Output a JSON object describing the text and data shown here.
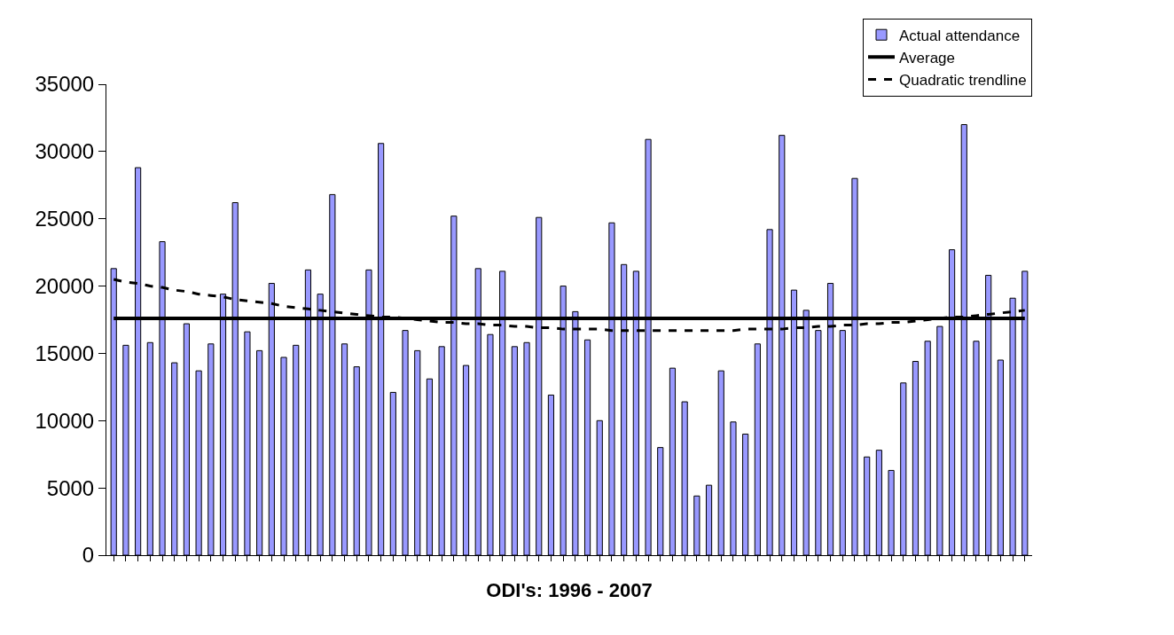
{
  "chart_data": {
    "type": "bar",
    "xlabel": "ODI's: 1996 - 2007",
    "categories": [
      null,
      null,
      null,
      null,
      null,
      null,
      null,
      null,
      null,
      null,
      null,
      null,
      null,
      null,
      null,
      null,
      null,
      null,
      null,
      null,
      null,
      null,
      null,
      null,
      null,
      null,
      null,
      null,
      null,
      null,
      null,
      null,
      null,
      null,
      null,
      null,
      null,
      null,
      null,
      null,
      null,
      null,
      null,
      null,
      null,
      null,
      null,
      null,
      null,
      null,
      null,
      null,
      null,
      null,
      null,
      null,
      null,
      null,
      null,
      null,
      null,
      null,
      null,
      null,
      null,
      null,
      null,
      null,
      null,
      null,
      null,
      null,
      null,
      null,
      null,
      null
    ],
    "series": [
      {
        "name": "Actual attendance",
        "color": "#9999ff",
        "values": [
          21300,
          15600,
          28800,
          15800,
          23300,
          14300,
          17200,
          13700,
          15700,
          19400,
          26200,
          16600,
          15200,
          20200,
          14700,
          15600,
          21200,
          19400,
          26800,
          15700,
          14000,
          21200,
          30600,
          12100,
          16700,
          15200,
          13100,
          15500,
          25200,
          14100,
          21300,
          16400,
          21100,
          15500,
          15800,
          25100,
          11900,
          20000,
          18100,
          16000,
          10000,
          24700,
          21600,
          21100,
          30900,
          8000,
          13900,
          11400,
          4400,
          5200,
          13700,
          9900,
          9000,
          15700,
          24200,
          31200,
          19700,
          18200,
          16700,
          20200,
          16700,
          28000,
          7300,
          7800,
          6300,
          12800,
          14400,
          15900,
          17000,
          22700,
          32000,
          15900,
          20800,
          14500,
          19100,
          21100
        ]
      },
      {
        "name": "Average",
        "type": "line",
        "color": "#000000",
        "line_style": "solid",
        "values": [
          17600,
          17600,
          17600,
          17600,
          17600,
          17600,
          17600,
          17600,
          17600,
          17600,
          17600,
          17600,
          17600,
          17600,
          17600,
          17600,
          17600,
          17600,
          17600,
          17600,
          17600,
          17600,
          17600,
          17600,
          17600,
          17600,
          17600,
          17600,
          17600,
          17600,
          17600,
          17600,
          17600,
          17600,
          17600,
          17600,
          17600,
          17600,
          17600,
          17600,
          17600,
          17600,
          17600,
          17600,
          17600,
          17600,
          17600,
          17600,
          17600,
          17600,
          17600,
          17600,
          17600,
          17600,
          17600,
          17600,
          17600,
          17600,
          17600,
          17600,
          17600,
          17600,
          17600,
          17600,
          17600,
          17600,
          17600,
          17600,
          17600,
          17600,
          17600,
          17600,
          17600,
          17600,
          17600,
          17600
        ]
      },
      {
        "name": "Quadratic trendline",
        "type": "line",
        "color": "#000000",
        "line_style": "dashed",
        "values": [
          20500,
          20300,
          20200,
          20000,
          19900,
          19700,
          19600,
          19400,
          19300,
          19200,
          19000,
          18900,
          18800,
          18700,
          18500,
          18400,
          18300,
          18200,
          18100,
          18000,
          17900,
          17800,
          17700,
          17700,
          17600,
          17500,
          17400,
          17300,
          17300,
          17200,
          17200,
          17100,
          17100,
          17000,
          17000,
          16900,
          16900,
          16800,
          16800,
          16800,
          16800,
          16700,
          16700,
          16700,
          16700,
          16700,
          16700,
          16700,
          16700,
          16700,
          16700,
          16700,
          16800,
          16800,
          16800,
          16800,
          16900,
          16900,
          17000,
          17000,
          17100,
          17100,
          17200,
          17200,
          17300,
          17300,
          17400,
          17500,
          17600,
          17700,
          17700,
          17800,
          17900,
          18000,
          18100,
          18200
        ]
      }
    ],
    "ylim": [
      0,
      35000
    ],
    "yticks": [
      0,
      5000,
      10000,
      15000,
      20000,
      25000,
      30000,
      35000
    ],
    "grid": false,
    "legend": "top right",
    "marker": "none",
    "tick_labels": "y"
  }
}
